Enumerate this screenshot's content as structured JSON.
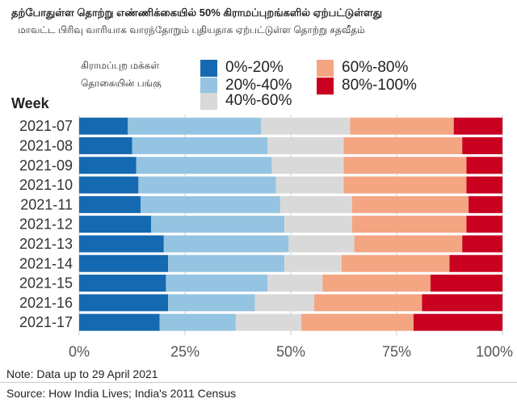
{
  "chart_data": {
    "type": "bar",
    "orientation": "horizontal",
    "stacked": true,
    "title": "தற்போதுள்ள தொற்று எண்ணிக்கையில் 50% கிராமப்புறங்களில் ஏற்பட்டுள்ளது",
    "subtitle": "மாவட்ட பிரிவு வாரியாக வாரந்தோறும் புதியதாக ஏற்பட்டுள்ள தொற்று சதவீதம்",
    "legend_title": [
      "கிராமப்புற மக்கள்",
      "தொகையின் பங்கு"
    ],
    "ylabel": "Week",
    "xlim": [
      0,
      100
    ],
    "x_ticks": [
      "0%",
      "25%",
      "50%",
      "75%",
      "100%"
    ],
    "grid": true,
    "legend_position": "top",
    "categories": [
      "2021-07",
      "2021-08",
      "2021-09",
      "2021-10",
      "2021-11",
      "2021-12",
      "2021-13",
      "2021-14",
      "2021-15",
      "2021-16",
      "2021-17"
    ],
    "series": [
      {
        "name": "0%-20%",
        "color": "#1569b0",
        "values": [
          11.5,
          12.5,
          13.5,
          14,
          14.5,
          17,
          20,
          21,
          20.5,
          21,
          19
        ]
      },
      {
        "name": "20%-40%",
        "color": "#94c4e1",
        "values": [
          31.5,
          32,
          32,
          32.5,
          33,
          31.5,
          29.5,
          27.5,
          24,
          20.5,
          18
        ]
      },
      {
        "name": "40%-60%",
        "color": "#d9d9d9",
        "values": [
          21,
          18,
          17,
          16,
          17,
          16,
          15.5,
          13.5,
          13,
          14,
          15.5
        ]
      },
      {
        "name": "60%-80%",
        "color": "#f4a582",
        "values": [
          24.5,
          28,
          29,
          29,
          27.5,
          27,
          25.5,
          25.5,
          25.5,
          25.5,
          26.5
        ]
      },
      {
        "name": "80%-100%",
        "color": "#ca0020",
        "values": [
          11.5,
          9.5,
          8.5,
          8.5,
          8,
          8.5,
          9.5,
          12.5,
          17,
          19,
          21
        ]
      }
    ]
  },
  "note": "Note: Data up to 29 April 2021",
  "source": "Source: How India Lives; India's 2011 Census"
}
